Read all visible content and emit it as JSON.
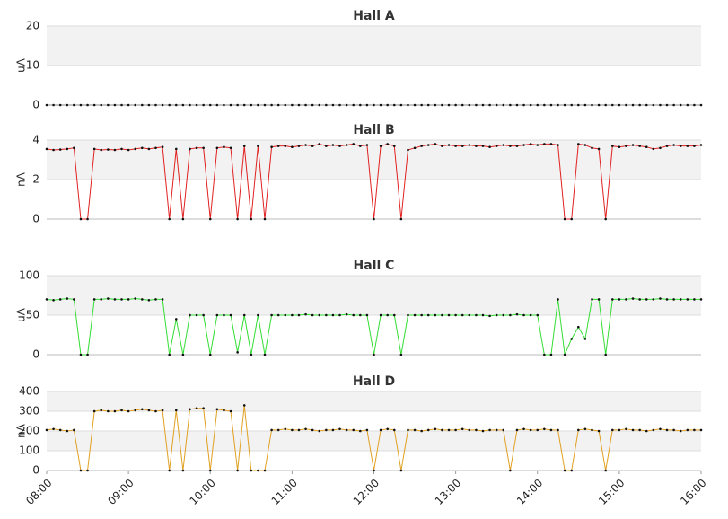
{
  "chart_data": [
    {
      "type": "line",
      "title": "Hall A",
      "y_label": "uA",
      "color": "#888888",
      "xlim": [
        "08:00",
        "16:00"
      ],
      "ylim": [
        0,
        20
      ],
      "yticks": [
        0,
        10,
        20
      ],
      "grid": true,
      "x": [
        "08:00",
        "08:05",
        "08:10",
        "08:15",
        "08:20",
        "08:25",
        "08:30",
        "08:35",
        "08:40",
        "08:45",
        "08:50",
        "08:55",
        "09:00",
        "09:05",
        "09:10",
        "09:15",
        "09:20",
        "09:25",
        "09:30",
        "09:35",
        "09:40",
        "09:45",
        "09:50",
        "09:55",
        "10:00",
        "10:05",
        "10:10",
        "10:15",
        "10:20",
        "10:25",
        "10:30",
        "10:35",
        "10:40",
        "10:45",
        "10:50",
        "10:55",
        "11:00",
        "11:05",
        "11:10",
        "11:15",
        "11:20",
        "11:25",
        "11:30",
        "11:35",
        "11:40",
        "11:45",
        "11:50",
        "11:55",
        "12:00",
        "12:05",
        "12:10",
        "12:15",
        "12:20",
        "12:25",
        "12:30",
        "12:35",
        "12:40",
        "12:45",
        "12:50",
        "12:55",
        "13:00",
        "13:05",
        "13:10",
        "13:15",
        "13:20",
        "13:25",
        "13:30",
        "13:35",
        "13:40",
        "13:45",
        "13:50",
        "13:55",
        "14:00",
        "14:05",
        "14:10",
        "14:15",
        "14:20",
        "14:25",
        "14:30",
        "14:35",
        "14:40",
        "14:45",
        "14:50",
        "14:55",
        "15:00",
        "15:05",
        "15:10",
        "15:15",
        "15:20",
        "15:25",
        "15:30",
        "15:35",
        "15:40",
        "15:45",
        "15:50",
        "15:55",
        "16:00"
      ],
      "values": [
        0,
        0,
        0,
        0,
        0,
        0,
        0,
        0,
        0,
        0,
        0,
        0,
        0,
        0,
        0,
        0,
        0,
        0,
        0,
        0,
        0,
        0,
        0,
        0,
        0,
        0,
        0,
        0,
        0,
        0,
        0,
        0,
        0,
        0,
        0,
        0,
        0,
        0,
        0,
        0,
        0,
        0,
        0,
        0,
        0,
        0,
        0,
        0,
        0,
        0,
        0,
        0,
        0,
        0,
        0,
        0,
        0,
        0,
        0,
        0,
        0,
        0,
        0,
        0,
        0,
        0,
        0,
        0,
        0,
        0,
        0,
        0,
        0,
        0,
        0,
        0,
        0,
        0,
        0,
        0,
        0,
        0,
        0,
        0,
        0,
        0,
        0,
        0,
        0,
        0,
        0,
        0,
        0,
        0,
        0,
        0,
        0
      ]
    },
    {
      "type": "line",
      "title": "Hall B",
      "y_label": "nA",
      "color": "#e02020",
      "xlim": [
        "08:00",
        "16:00"
      ],
      "ylim": [
        0,
        4
      ],
      "yticks": [
        0,
        2,
        4
      ],
      "grid": true,
      "x": [
        "08:00",
        "08:05",
        "08:10",
        "08:15",
        "08:20",
        "08:25",
        "08:30",
        "08:35",
        "08:40",
        "08:45",
        "08:50",
        "08:55",
        "09:00",
        "09:05",
        "09:10",
        "09:15",
        "09:20",
        "09:25",
        "09:30",
        "09:35",
        "09:40",
        "09:45",
        "09:50",
        "09:55",
        "10:00",
        "10:05",
        "10:10",
        "10:15",
        "10:20",
        "10:25",
        "10:30",
        "10:35",
        "10:40",
        "10:45",
        "10:50",
        "10:55",
        "11:00",
        "11:05",
        "11:10",
        "11:15",
        "11:20",
        "11:25",
        "11:30",
        "11:35",
        "11:40",
        "11:45",
        "11:50",
        "11:55",
        "12:00",
        "12:05",
        "12:10",
        "12:15",
        "12:20",
        "12:25",
        "12:30",
        "12:35",
        "12:40",
        "12:45",
        "12:50",
        "12:55",
        "13:00",
        "13:05",
        "13:10",
        "13:15",
        "13:20",
        "13:25",
        "13:30",
        "13:35",
        "13:40",
        "13:45",
        "13:50",
        "13:55",
        "14:00",
        "14:05",
        "14:10",
        "14:15",
        "14:20",
        "14:25",
        "14:30",
        "14:35",
        "14:40",
        "14:45",
        "14:50",
        "14:55",
        "15:00",
        "15:05",
        "15:10",
        "15:15",
        "15:20",
        "15:25",
        "15:30",
        "15:35",
        "15:40",
        "15:45",
        "15:50",
        "15:55",
        "16:00"
      ],
      "values": [
        3.55,
        3.5,
        3.52,
        3.55,
        3.6,
        0,
        0,
        3.55,
        3.5,
        3.52,
        3.5,
        3.55,
        3.5,
        3.55,
        3.6,
        3.55,
        3.6,
        3.65,
        0,
        3.55,
        0,
        3.55,
        3.6,
        3.6,
        0,
        3.6,
        3.65,
        3.6,
        0,
        3.7,
        0,
        3.7,
        0,
        3.65,
        3.7,
        3.7,
        3.65,
        3.7,
        3.75,
        3.7,
        3.8,
        3.7,
        3.75,
        3.7,
        3.75,
        3.8,
        3.7,
        3.75,
        0,
        3.7,
        3.8,
        3.7,
        0,
        3.5,
        3.6,
        3.7,
        3.75,
        3.8,
        3.7,
        3.75,
        3.7,
        3.7,
        3.75,
        3.7,
        3.7,
        3.65,
        3.7,
        3.75,
        3.7,
        3.7,
        3.75,
        3.8,
        3.75,
        3.8,
        3.8,
        3.75,
        0,
        0,
        3.8,
        3.75,
        3.6,
        3.55,
        0,
        3.7,
        3.65,
        3.7,
        3.75,
        3.7,
        3.65,
        3.55,
        3.6,
        3.7,
        3.75,
        3.7,
        3.7,
        3.7,
        3.75
      ]
    },
    {
      "type": "line",
      "title": "Hall C",
      "y_label": "uA",
      "color": "#33dd33",
      "xlim": [
        "08:00",
        "16:00"
      ],
      "ylim": [
        0,
        100
      ],
      "yticks": [
        0,
        50,
        100
      ],
      "grid": true,
      "x": [
        "08:00",
        "08:05",
        "08:10",
        "08:15",
        "08:20",
        "08:25",
        "08:30",
        "08:35",
        "08:40",
        "08:45",
        "08:50",
        "08:55",
        "09:00",
        "09:05",
        "09:10",
        "09:15",
        "09:20",
        "09:25",
        "09:30",
        "09:35",
        "09:40",
        "09:45",
        "09:50",
        "09:55",
        "10:00",
        "10:05",
        "10:10",
        "10:15",
        "10:20",
        "10:25",
        "10:30",
        "10:35",
        "10:40",
        "10:45",
        "10:50",
        "10:55",
        "11:00",
        "11:05",
        "11:10",
        "11:15",
        "11:20",
        "11:25",
        "11:30",
        "11:35",
        "11:40",
        "11:45",
        "11:50",
        "11:55",
        "12:00",
        "12:05",
        "12:10",
        "12:15",
        "12:20",
        "12:25",
        "12:30",
        "12:35",
        "12:40",
        "12:45",
        "12:50",
        "12:55",
        "13:00",
        "13:05",
        "13:10",
        "13:15",
        "13:20",
        "13:25",
        "13:30",
        "13:35",
        "13:40",
        "13:45",
        "13:50",
        "13:55",
        "14:00",
        "14:05",
        "14:10",
        "14:15",
        "14:20",
        "14:25",
        "14:30",
        "14:35",
        "14:40",
        "14:45",
        "14:50",
        "14:55",
        "15:00",
        "15:05",
        "15:10",
        "15:15",
        "15:20",
        "15:25",
        "15:30",
        "15:35",
        "15:40",
        "15:45",
        "15:50",
        "15:55",
        "16:00"
      ],
      "values": [
        70,
        69,
        70,
        71,
        70,
        0,
        0,
        70,
        70,
        71,
        70,
        70,
        70,
        71,
        70,
        69,
        70,
        70,
        0,
        45,
        0,
        50,
        50,
        50,
        0,
        50,
        50,
        50,
        3,
        50,
        0,
        50,
        0,
        50,
        50,
        50,
        50,
        50,
        51,
        50,
        50,
        50,
        50,
        50,
        51,
        50,
        50,
        50,
        0,
        50,
        50,
        50,
        0,
        50,
        50,
        50,
        50,
        50,
        50,
        50,
        50,
        50,
        50,
        50,
        50,
        49,
        50,
        50,
        50,
        51,
        50,
        50,
        50,
        0,
        0,
        70,
        0,
        20,
        35,
        20,
        70,
        70,
        0,
        70,
        70,
        70,
        71,
        70,
        70,
        70,
        71,
        70,
        70,
        70,
        70,
        70,
        70
      ]
    },
    {
      "type": "line",
      "title": "Hall D",
      "y_label": "nA",
      "color": "#e0a020",
      "xlim": [
        "08:00",
        "16:00"
      ],
      "ylim": [
        0,
        400
      ],
      "yticks": [
        0,
        100,
        200,
        300,
        400
      ],
      "grid": true,
      "xticks": [
        "08:00",
        "09:00",
        "10:00",
        "11:00",
        "12:00",
        "13:00",
        "14:00",
        "15:00",
        "16:00"
      ],
      "x": [
        "08:00",
        "08:05",
        "08:10",
        "08:15",
        "08:20",
        "08:25",
        "08:30",
        "08:35",
        "08:40",
        "08:45",
        "08:50",
        "08:55",
        "09:00",
        "09:05",
        "09:10",
        "09:15",
        "09:20",
        "09:25",
        "09:30",
        "09:35",
        "09:40",
        "09:45",
        "09:50",
        "09:55",
        "10:00",
        "10:05",
        "10:10",
        "10:15",
        "10:20",
        "10:25",
        "10:30",
        "10:35",
        "10:40",
        "10:45",
        "10:50",
        "10:55",
        "11:00",
        "11:05",
        "11:10",
        "11:15",
        "11:20",
        "11:25",
        "11:30",
        "11:35",
        "11:40",
        "11:45",
        "11:50",
        "11:55",
        "12:00",
        "12:05",
        "12:10",
        "12:15",
        "12:20",
        "12:25",
        "12:30",
        "12:35",
        "12:40",
        "12:45",
        "12:50",
        "12:55",
        "13:00",
        "13:05",
        "13:10",
        "13:15",
        "13:20",
        "13:25",
        "13:30",
        "13:35",
        "13:40",
        "13:45",
        "13:50",
        "13:55",
        "14:00",
        "14:05",
        "14:10",
        "14:15",
        "14:20",
        "14:25",
        "14:30",
        "14:35",
        "14:40",
        "14:45",
        "14:50",
        "14:55",
        "15:00",
        "15:05",
        "15:10",
        "15:15",
        "15:20",
        "15:25",
        "15:30",
        "15:35",
        "15:40",
        "15:45",
        "15:50",
        "15:55",
        "16:00"
      ],
      "values": [
        205,
        210,
        205,
        200,
        205,
        0,
        0,
        300,
        305,
        300,
        300,
        305,
        300,
        305,
        310,
        305,
        300,
        305,
        0,
        305,
        0,
        310,
        315,
        315,
        0,
        310,
        305,
        300,
        0,
        330,
        0,
        0,
        0,
        205,
        205,
        210,
        205,
        205,
        210,
        205,
        200,
        205,
        205,
        210,
        205,
        205,
        200,
        205,
        0,
        205,
        210,
        205,
        0,
        205,
        205,
        200,
        205,
        210,
        205,
        205,
        205,
        210,
        205,
        205,
        200,
        205,
        205,
        205,
        0,
        205,
        210,
        205,
        205,
        210,
        205,
        205,
        0,
        0,
        205,
        210,
        205,
        200,
        0,
        205,
        205,
        210,
        205,
        205,
        200,
        205,
        210,
        205,
        205,
        200,
        205,
        205,
        205
      ]
    }
  ]
}
